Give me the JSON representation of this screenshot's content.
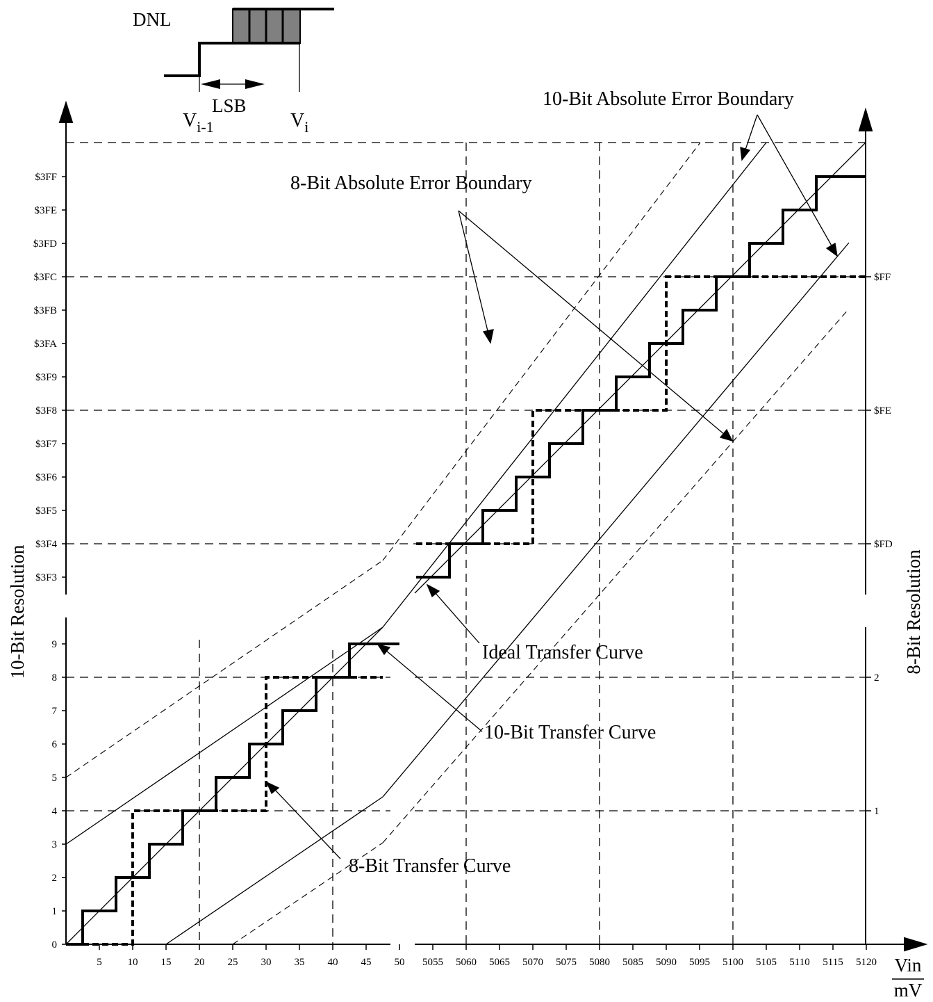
{
  "dnl_inset": {
    "title": "DNL",
    "lsb": "LSB",
    "v_prev_base": "V",
    "v_prev_sub": "i-1",
    "v_i_base": "V",
    "v_i_sub": "i"
  },
  "axes": {
    "left_label": "10-Bit Resolution",
    "right_label": "8-Bit Resolution",
    "x_unit_top": "Vin",
    "x_unit_bottom": "mV"
  },
  "ticks": {
    "y_low": [
      "0",
      "1",
      "2",
      "3",
      "4",
      "5",
      "6",
      "7",
      "8",
      "9"
    ],
    "y_high": [
      "$3F3",
      "$3F4",
      "$3F5",
      "$3F6",
      "$3F7",
      "$3F8",
      "$3F9",
      "$3FA",
      "$3FB",
      "$3FC",
      "$3FD",
      "$3FE",
      "$3FF"
    ],
    "x_low": [
      "5",
      "10",
      "15",
      "20",
      "25",
      "30",
      "35",
      "40",
      "45",
      "50"
    ],
    "x_high": [
      "5055",
      "5060",
      "5065",
      "5070",
      "5075",
      "5080",
      "5085",
      "5090",
      "5095",
      "5100",
      "5105",
      "5110",
      "5115",
      "5120"
    ],
    "right_low": [
      "1",
      "2"
    ],
    "right_high": [
      "$FD",
      "$FE",
      "$FF"
    ]
  },
  "annotations": {
    "ten_bit_boundary": "10-Bit Absolute Error Boundary",
    "eight_bit_boundary": "8-Bit Absolute Error Boundary",
    "ideal_curve": "Ideal Transfer Curve",
    "ten_bit_curve": "10-Bit Transfer Curve",
    "eight_bit_curve": "8-Bit Transfer Curve"
  },
  "chart_data": {
    "type": "line",
    "x_segments": [
      {
        "range": [
          0,
          53
        ],
        "y_range": [
          0,
          9
        ]
      },
      {
        "range": [
          5052.5,
          5120
        ],
        "y_range": [
          "$3F3",
          "$3FF"
        ]
      }
    ],
    "series": [
      {
        "name": "10-Bit Transfer Curve",
        "low": {
          "x_steps": [
            2.5,
            7.5,
            12.5,
            17.5,
            22.5,
            27.5,
            32.5,
            37.5,
            42.5
          ],
          "y_start": 0,
          "y_end": 9,
          "x_end": 50
        },
        "high": {
          "x_steps": [
            5057.5,
            5062.5,
            5067.5,
            5072.5,
            5077.5,
            5082.5,
            5087.5,
            5092.5,
            5097.5,
            5102.5,
            5107.5,
            5112.5
          ],
          "y_start": "$3F3",
          "y_end": "$3FF",
          "x_end": 5120
        }
      },
      {
        "name": "8-Bit Transfer Curve",
        "low": {
          "x_steps": [
            10,
            30
          ],
          "levels_10bit": [
            0,
            4,
            8
          ],
          "x_start": 2.5,
          "x_end": 47.5
        },
        "high": {
          "x_steps": [
            5070,
            5090
          ],
          "levels_10bit": [
            "$3F4",
            "$3F8",
            "$3FC"
          ],
          "x_start": 5052.5,
          "x_end": 5120
        }
      },
      {
        "name": "Ideal Transfer Curve",
        "slope_lsb_per_mv": 0.2,
        "offset_lsb": 0
      },
      {
        "name": "10-Bit Absolute Error Boundary",
        "offset_lsb": [
          3,
          -3
        ]
      },
      {
        "name": "8-Bit Absolute Error Boundary",
        "offset_lsb": [
          5,
          -5
        ]
      }
    ]
  }
}
